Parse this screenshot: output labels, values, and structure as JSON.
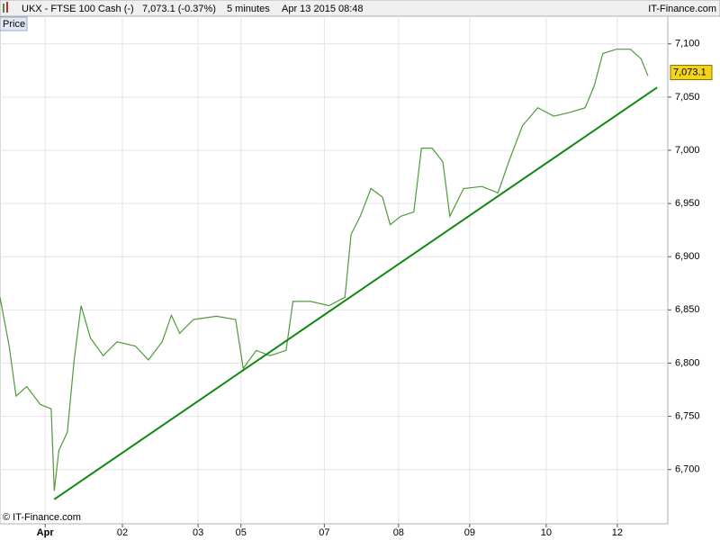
{
  "chart_data": {
    "type": "line",
    "header": {
      "symbol": "UKX - FTSE 100 Cash (-)",
      "quote": "7,073.1 (-0.37%)",
      "interval": "5 minutes",
      "datetime": "Apr 13 2015 08:48",
      "source": "IT-Finance.com"
    },
    "panel_label": "Price",
    "copyright": "© IT-Finance.com",
    "last_price": {
      "value": 7073.1,
      "label": "7,073.1"
    },
    "xlim": [
      -0.59,
      8.14
    ],
    "xticks": [
      {
        "value": 0,
        "label": "Apr"
      },
      {
        "value": 1.01,
        "label": "02"
      },
      {
        "value": 2.0,
        "label": "03"
      },
      {
        "value": 2.56,
        "label": "05"
      },
      {
        "value": 3.65,
        "label": "07"
      },
      {
        "value": 4.62,
        "label": "08"
      },
      {
        "value": 5.55,
        "label": "09"
      },
      {
        "value": 6.55,
        "label": "10"
      },
      {
        "value": 7.48,
        "label": "12"
      }
    ],
    "ylim": [
      6649,
      7126
    ],
    "yticks": [
      {
        "value": 6700,
        "label": "6,700"
      },
      {
        "value": 6750,
        "label": "6,750"
      },
      {
        "value": 6800,
        "label": "6,800"
      },
      {
        "value": 6850,
        "label": "6,850"
      },
      {
        "value": 6900,
        "label": "6,900"
      },
      {
        "value": 6950,
        "label": "6,950"
      },
      {
        "value": 7000,
        "label": "7,000"
      },
      {
        "value": 7050,
        "label": "7,050"
      },
      {
        "value": 7100,
        "label": "7,100"
      }
    ],
    "grid": true,
    "series": [
      {
        "name": "Price",
        "color": "#4f9a3c",
        "x": [
          -0.59,
          -0.47,
          -0.38,
          -0.24,
          -0.06,
          0.08,
          0.12,
          0.18,
          0.29,
          0.38,
          0.47,
          0.59,
          0.76,
          0.94,
          1.18,
          1.35,
          1.53,
          1.65,
          1.76,
          1.94,
          2.24,
          2.49,
          2.59,
          2.76,
          2.94,
          3.15,
          3.24,
          3.47,
          3.71,
          3.92,
          4.0,
          4.12,
          4.26,
          4.41,
          4.51,
          4.65,
          4.82,
          4.92,
          5.06,
          5.2,
          5.29,
          5.47,
          5.71,
          5.92,
          6.06,
          6.24,
          6.44,
          6.65,
          6.88,
          7.06,
          7.18,
          7.29,
          7.47,
          7.65,
          7.79,
          7.88
        ],
        "values": [
          6862,
          6816,
          6769,
          6778,
          6761,
          6757,
          6680,
          6718,
          6735,
          6803,
          6854,
          6824,
          6807,
          6820,
          6816,
          6803,
          6820,
          6845,
          6828,
          6841,
          6844,
          6841,
          6795,
          6812,
          6807,
          6812,
          6858,
          6858,
          6854,
          6862,
          6921,
          6938,
          6964,
          6956,
          6930,
          6938,
          6942,
          7002,
          7002,
          6989,
          6938,
          6964,
          6966,
          6960,
          6989,
          7023,
          7040,
          7032,
          7036,
          7040,
          7061,
          7091,
          7095,
          7095,
          7086,
          7070
        ]
      },
      {
        "name": "Trend",
        "color": "#118811",
        "x": [
          0.12,
          8.0
        ],
        "values": [
          6672,
          7059
        ]
      }
    ]
  }
}
